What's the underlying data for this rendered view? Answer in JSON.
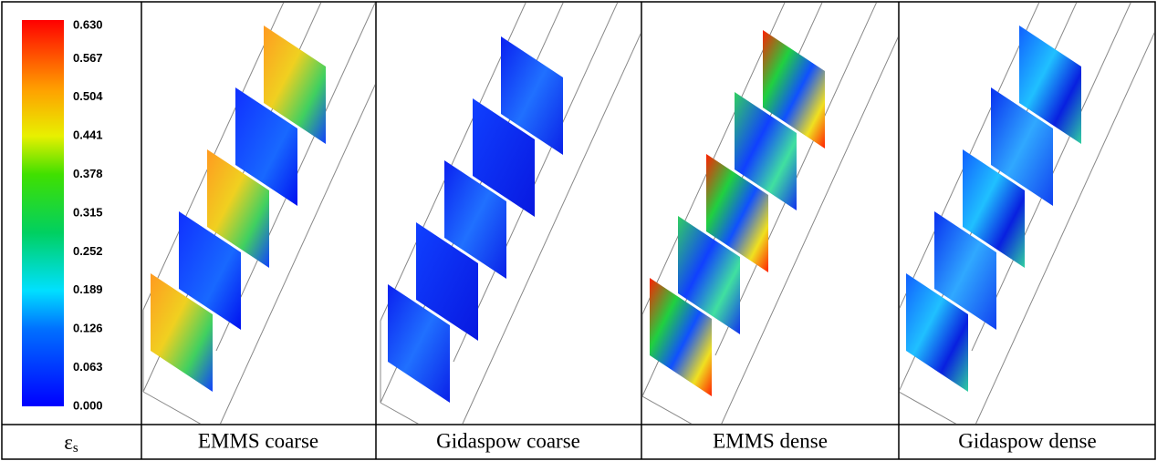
{
  "figure": {
    "colorbar": {
      "range": [
        0,
        0.63
      ],
      "ticks": [
        {
          "value": 0.63,
          "label": "0.630"
        },
        {
          "value": 0.567,
          "label": "0.567"
        },
        {
          "value": 0.504,
          "label": "0.504"
        },
        {
          "value": 0.441,
          "label": "0.441"
        },
        {
          "value": 0.378,
          "label": "0.378"
        },
        {
          "value": 0.315,
          "label": "0.315"
        },
        {
          "value": 0.252,
          "label": "0.252"
        },
        {
          "value": 0.189,
          "label": "0.189"
        },
        {
          "value": 0.126,
          "label": "0.126"
        },
        {
          "value": 0.063,
          "label": "0.063"
        },
        {
          "value": 0,
          "label": "0.000"
        }
      ],
      "label": {
        "symbol": "ε",
        "subscript": "s"
      }
    },
    "panels": [
      {
        "label": "EMMS coarse"
      },
      {
        "label": "Gidaspow coarse"
      },
      {
        "label": "EMMS dense"
      },
      {
        "label": "Gidaspow dense"
      }
    ]
  }
}
